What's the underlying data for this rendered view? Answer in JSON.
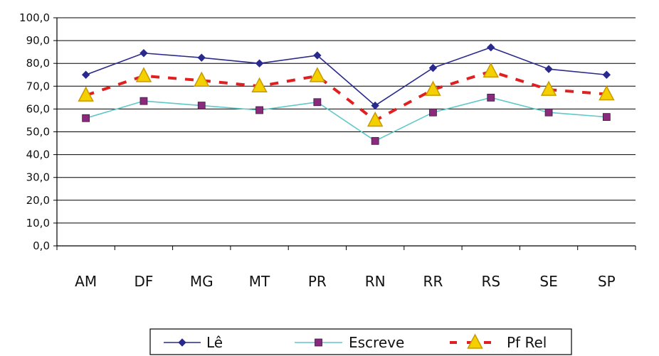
{
  "chart_data": {
    "type": "line",
    "categories": [
      "AM",
      "DF",
      "MG",
      "MT",
      "PR",
      "RN",
      "RR",
      "RS",
      "SE",
      "SP"
    ],
    "ylim": [
      0,
      100
    ],
    "yticks": [
      "0,0",
      "10,0",
      "20,0",
      "30,0",
      "40,0",
      "50,0",
      "60,0",
      "70,0",
      "80,0",
      "90,0",
      "100,0"
    ],
    "grid": true,
    "legend_position": "bottom",
    "series": [
      {
        "name": "Lê",
        "values": [
          75,
          84.5,
          82.5,
          80,
          83.5,
          61.5,
          78,
          87,
          77.5,
          75
        ],
        "color": "#2a2a8c",
        "marker": "diamond",
        "style": "solid"
      },
      {
        "name": "Escreve",
        "values": [
          56,
          63.5,
          61.5,
          59.5,
          63,
          46,
          58.5,
          65,
          58.5,
          56.5
        ],
        "color": "#5fc8c8",
        "marker": "square",
        "marker_color": "#8a2a7a",
        "style": "solid"
      },
      {
        "name": "Pf Rel",
        "values": [
          66,
          74.5,
          72.5,
          70,
          74.5,
          55,
          68.5,
          76.5,
          68.5,
          66.5
        ],
        "color": "#e02020",
        "marker": "triangle",
        "marker_color": "#f5d000",
        "style": "dashed"
      }
    ]
  }
}
